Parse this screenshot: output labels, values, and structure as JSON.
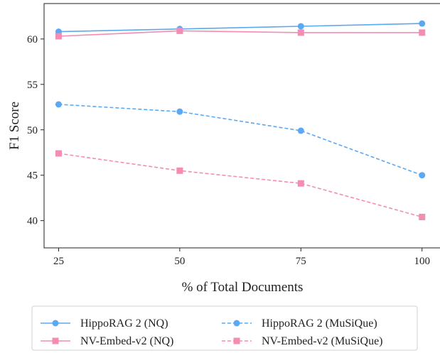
{
  "chart_data": {
    "type": "line",
    "title": "",
    "xlabel": "% of Total Documents",
    "ylabel": "F1 Score",
    "x": [
      25,
      50,
      75,
      100
    ],
    "xticks": [
      "25",
      "50",
      "75",
      "100"
    ],
    "yticks": [
      "40",
      "45",
      "50",
      "55",
      "60"
    ],
    "xlim": [
      22,
      104
    ],
    "ylim": [
      37,
      63.9
    ],
    "grid": false,
    "legend_position": "bottom",
    "series": [
      {
        "name": "HippoRAG 2 (NQ)",
        "values": [
          60.8,
          61.1,
          61.4,
          61.7
        ],
        "color": "#5aa9f2",
        "marker": "circle",
        "dashed": false
      },
      {
        "name": "NV-Embed-v2 (NQ)",
        "values": [
          60.3,
          60.9,
          60.7,
          60.7
        ],
        "color": "#f48cb4",
        "marker": "square",
        "dashed": false
      },
      {
        "name": "HippoRAG 2 (MuSiQue)",
        "values": [
          52.8,
          52.0,
          49.9,
          45.0
        ],
        "color": "#5aa9f2",
        "marker": "circle",
        "dashed": true
      },
      {
        "name": "NV-Embed-v2 (MuSiQue)",
        "values": [
          47.4,
          45.5,
          44.1,
          40.4
        ],
        "color": "#f48cb4",
        "marker": "square",
        "dashed": true
      }
    ]
  }
}
